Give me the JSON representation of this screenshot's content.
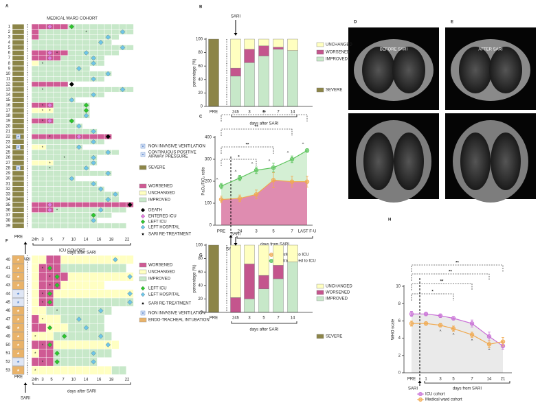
{
  "chart_data": [
    {
      "type": "swimmer",
      "panel": "A",
      "title": "MEDICAL WARD COHORT",
      "rows": [
        {
          "label": "1",
          "pre": "S",
          "cells": "WWWWWGGGGGGGGG",
          "events": "..m..g........"
        },
        {
          "label": "2",
          "pre": "S",
          "cells": "WGGGGGGGGGGGGG",
          "events": ".......*....b."
        },
        {
          "label": "3",
          "pre": "S",
          "cells": "WGGGGGGGGGGG..",
          "events": "..........b..."
        },
        {
          "label": "4",
          "pre": "S",
          "cells": "GGGGGGGGGGG...",
          "events": ".........b...."
        },
        {
          "label": "5",
          "pre": "S",
          "cells": "GGGGGGGGGGGGGG",
          "events": "............b."
        },
        {
          "label": "6",
          "pre": "S",
          "cells": "WWWWWGGGGGGG..",
          "events": "..m*...b......"
        },
        {
          "label": "7",
          "pre": "S",
          "cells": "WWWWGGGGGG....",
          "events": "..m.....b....."
        },
        {
          "label": "8",
          "pre": "S",
          "cells": "YGGGGGGGGG....",
          "events": ".*......b....."
        },
        {
          "label": "9",
          "pre": "S",
          "cells": "GGGGGGGG......",
          "events": "......b......."
        },
        {
          "label": "10",
          "pre": "S",
          "cells": "GGGGGGGGGGG...",
          "events": "..........b..."
        },
        {
          "label": "11",
          "pre": "S",
          "cells": "GGGGGGGGGG....",
          "events": "........b....."
        },
        {
          "label": "12",
          "pre": "S",
          "cells": "WWWWW.........",
          "events": ".....k........"
        },
        {
          "label": "13",
          "pre": "S",
          "cells": "GGGGGGGGGGGGGG",
          "events": ".*..........b."
        },
        {
          "label": "14",
          "pre": "S",
          "cells": "GGGGGGGGGG....",
          "events": "........b....."
        },
        {
          "label": "15",
          "pre": "S",
          "cells": "GGGGGG........",
          "events": ".....b........"
        },
        {
          "label": "16",
          "pre": "S",
          "cells": "WWWGGGGG......",
          "events": ".*m....g......"
        },
        {
          "label": "17",
          "pre": "S",
          "cells": "YYYGGGGG......",
          "events": ".**....g......"
        },
        {
          "label": "18",
          "pre": "S",
          "cells": "GGGGGGGG......",
          "events": ".......b......"
        },
        {
          "label": "19",
          "pre": "S",
          "cells": "WWWGGG........",
          "events": ".*m..g........"
        },
        {
          "label": "20",
          "pre": "S",
          "cells": "GGGGGGG.......",
          "events": "......b......."
        },
        {
          "label": "21",
          "pre": "S",
          "cells": "GGGGGGGGG.....",
          "events": "........b....."
        },
        {
          "label": "22",
          "pre": "S",
          "support": "n",
          "cells": "WWWWWWWWWWW...",
          "events": "..*...m...k..."
        },
        {
          "label": "23",
          "pre": "S",
          "cells": "GGGGGGGGGG....",
          "events": "........b....."
        },
        {
          "label": "24",
          "pre": "S",
          "support": "n",
          "cells": "YYGGGGG.......",
          "events": ".*....b......."
        },
        {
          "label": "25",
          "pre": "S",
          "cells": "GGGGGGGGGGGG..",
          "events": "..........b..."
        },
        {
          "label": "26",
          "pre": "S",
          "cells": "GGGGGGGGG.....",
          "events": "....*...b....."
        },
        {
          "label": "27",
          "pre": "S",
          "cells": "YYYGGGGGG.....",
          "events": "..*.....b....."
        },
        {
          "label": "28",
          "pre": "S",
          "support": "n",
          "cells": "GGGGGGGG......",
          "events": "..*....b......"
        },
        {
          "label": "29",
          "pre": "S",
          "cells": "GGGGGGGGGGG...",
          "events": "..........b..."
        },
        {
          "label": "30",
          "pre": "S",
          "cells": "GGGGGG........",
          "events": ".....b........"
        },
        {
          "label": "31",
          "pre": "S",
          "cells": "GGGGGGGGG.....",
          "events": "........b....."
        },
        {
          "label": "32",
          "pre": "S",
          "cells": "GGGGGGGGGG....",
          "events": ".........b...."
        },
        {
          "label": "33",
          "pre": "S",
          "cells": "GGGGGGGGGGGG..",
          "events": "...........b.."
        },
        {
          "label": "34",
          "pre": "S",
          "cells": "GGGGGGGGGGGG..",
          "events": "..........b..."
        },
        {
          "label": "35",
          "pre": "S",
          "cells": "WWWWWWWWWWWWWW",
          "events": "..m..........k"
        },
        {
          "label": "36",
          "pre": "S",
          "cells": "WWWGGGGGGGGGG.",
          "events": "..m*.....b...."
        },
        {
          "label": "37",
          "pre": "S",
          "cells": "GGGGGGGGGGG...",
          "events": "........g....."
        },
        {
          "label": "38",
          "pre": "S",
          "cells": "GGGGGGGGG.....",
          "events": "........b....."
        },
        {
          "label": "39",
          "pre": "S",
          "cells": "GGGGGGGGGGGGG.",
          "events": ".............."
        }
      ],
      "pre_label": "PRE",
      "x_labels": [
        "24h",
        "3",
        "5",
        "7",
        "10",
        "14",
        "16",
        "18",
        "22"
      ],
      "x_label": "days after SARI",
      "annotation": "SARI",
      "legend": [
        {
          "code": "n",
          "label": "NON INVASIVE VENTILATION"
        },
        {
          "code": "c",
          "label": [
            "CONTINUOUS POSITIVE",
            "AIRWAY PRESSURE"
          ]
        },
        {
          "code": "S",
          "label": "SEVERE"
        },
        {
          "code": "W",
          "label": "WORSENED"
        },
        {
          "code": "Y",
          "label": "UNCHANGED"
        },
        {
          "code": "G",
          "label": "IMPROVED"
        },
        {
          "code": "k",
          "label": "DEATH"
        },
        {
          "code": "m",
          "label": "ENTERED ICU"
        },
        {
          "code": "g",
          "label": "LEFT ICU"
        },
        {
          "code": "b",
          "label": "LEFT HOSPITAL"
        },
        {
          "code": "*",
          "label": "SARI RE-TREATMENT"
        }
      ]
    },
    {
      "type": "stacked_bar",
      "panel": "B",
      "categories": [
        "PRE",
        "24h",
        "3",
        "5",
        "7",
        "14"
      ],
      "series": [
        {
          "name": "IMPROVED",
          "color": "#c7e8c9",
          "values": [
            null,
            45,
            65,
            75,
            85,
            83
          ]
        },
        {
          "name": "WORSENED",
          "color": "#c4558d",
          "values": [
            null,
            12,
            20,
            15,
            3,
            0
          ]
        },
        {
          "name": "UNCHANGED",
          "color": "#ffffc0",
          "values": [
            null,
            43,
            15,
            10,
            12,
            17
          ]
        },
        {
          "name": "SEVERE",
          "color": "#8c8548",
          "values": [
            100,
            null,
            null,
            null,
            null,
            null
          ]
        }
      ],
      "ylabel": "percentage (%)",
      "x_label": "days after SARI",
      "annotation": "SARI",
      "ylim": [
        0,
        100
      ],
      "yticks": [
        0,
        20,
        40,
        60,
        80,
        100
      ]
    },
    {
      "type": "line",
      "panel": "C",
      "categories": [
        "PRE",
        "24",
        "3",
        "5",
        "7",
        "LAST F-U"
      ],
      "series": [
        {
          "name": "transferred to ICU",
          "color": "#f0a94f",
          "area_color": "#e07aa9",
          "values": [
            117,
            122,
            140,
            205,
            198,
            198
          ],
          "errors": [
            15,
            15,
            20,
            35,
            25,
            25
          ]
        },
        {
          "name": "not transferred to ICU",
          "color": "#5cc45c",
          "area_color": "#cdeccd",
          "values": [
            178,
            215,
            250,
            262,
            300,
            340
          ],
          "errors": [
            12,
            12,
            15,
            20,
            15,
            8
          ],
          "marks": [
            "^",
            "^",
            "^",
            "^",
            "^",
            "^"
          ]
        }
      ],
      "significance": [
        "*",
        "**",
        "**",
        "**"
      ],
      "ylabel": "PaO₂/FiO₂ ratio",
      "x_label": "days from SARI",
      "annotation": "SARI",
      "ylim": [
        0,
        400
      ],
      "yticks": [
        0,
        100,
        200,
        300,
        400
      ]
    },
    {
      "type": "swimmer",
      "panel": "F",
      "title": "ICU COHORT",
      "rows": [
        {
          "label": "40",
          "pre": "o",
          "cells": "YYWWYYYYYYYYYY",
          "events": "...........b.."
        },
        {
          "label": "41",
          "pre": "o",
          "cells": "YWWWGGGGGGGGG.",
          "events": ".*g..........."
        },
        {
          "label": "42",
          "pre": "o",
          "cells": "YWWWWYYYYYYYYY",
          "events": "..*g.........b"
        },
        {
          "label": "43",
          "pre": "o",
          "cells": "YWWWYYYYYY....",
          "events": "..*g.........."
        },
        {
          "label": "44",
          "pre": "n",
          "cells": "YWWYYYYYYYYYYY",
          "events": ".*g..........b"
        },
        {
          "label": "45",
          "pre": "n",
          "cells": "YWWGGGGGGGGGGG",
          "events": ".*g..........b"
        },
        {
          "label": "46",
          "pre": "o",
          "cells": "YYGGGGGGGGG...",
          "events": "...*.....b...."
        },
        {
          "label": "47",
          "pre": "o",
          "cells": "WYYYGGGGGG....",
          "events": ".*....b......."
        },
        {
          "label": "48",
          "pre": "o",
          "cells": "WWYYYGGGGG....",
          "events": "..g....b......"
        },
        {
          "label": "49",
          "pre": "o",
          "cells": "YYYGGGGGGGG...",
          "events": "*...g....b...."
        },
        {
          "label": "50",
          "pre": "o",
          "cells": "WWWYYYYYYYYY..",
          "events": ".*g.......b..."
        },
        {
          "label": "51",
          "pre": "o",
          "cells": "YWWGGGGGGGG...",
          "events": "*..g....b....."
        },
        {
          "label": "52",
          "pre": "n",
          "cells": "WWWGGGGGG.....",
          "events": ".*.g....b....."
        },
        {
          "label": "53",
          "pre": "o",
          "cells": "YYYYYYYYYYYGG.",
          "events": "*............."
        }
      ],
      "pre_label": "PRE",
      "x_labels": [
        "24h",
        "3",
        "5",
        "7",
        "10",
        "14",
        "16",
        "18",
        "22"
      ],
      "x_label": "days after SARI",
      "annotation": "SARI",
      "legend": [
        {
          "code": "W",
          "label": "WORSENED"
        },
        {
          "code": "Y",
          "label": "UNCHANGED"
        },
        {
          "code": "G",
          "label": "IMPROVED"
        },
        {
          "code": "g",
          "label": "LEFT ICU"
        },
        {
          "code": "b",
          "label": "LEFT HOSPITAL"
        },
        {
          "code": "*",
          "label": "SARI RE-TREATMENT"
        },
        {
          "code": "n",
          "label": "NON INVASIVE VENTILATION"
        },
        {
          "code": "o",
          "label": "ENDO-TRACHEAL INTUBATION"
        }
      ]
    },
    {
      "type": "stacked_bar",
      "panel": "G",
      "categories": [
        "PRE",
        "24h",
        "3",
        "5",
        "7",
        "14"
      ],
      "series": [
        {
          "name": "IMPROVED",
          "color": "#c7e8c9",
          "values": [
            null,
            0,
            20,
            35,
            50,
            75
          ]
        },
        {
          "name": "WORSENED",
          "color": "#c4558d",
          "values": [
            null,
            22,
            52,
            20,
            20,
            0
          ]
        },
        {
          "name": "UNCHANGED",
          "color": "#ffffc0",
          "values": [
            null,
            78,
            28,
            45,
            30,
            25
          ]
        },
        {
          "name": "SEVERE",
          "color": "#8c8548",
          "values": [
            100,
            null,
            null,
            null,
            null,
            null
          ]
        }
      ],
      "ylabel": "percentage (%)",
      "x_label": "days after SARI",
      "annotation": "SARI",
      "ylim": [
        0,
        100
      ],
      "yticks": [
        0,
        20,
        40,
        60,
        80,
        100
      ]
    },
    {
      "type": "line",
      "panel": "H",
      "categories": [
        "PRE",
        "1",
        "3",
        "5",
        "7",
        "14",
        "21"
      ],
      "series": [
        {
          "name": "ICU cohort",
          "color": "#c86fd6",
          "area_color": "#e6e6e6",
          "values": [
            6.8,
            6.8,
            6.6,
            6.3,
            5.7,
            4.2,
            3.1
          ],
          "errors": [
            0.3,
            0.2,
            0.2,
            0.2,
            0.4,
            0.5,
            0.4
          ]
        },
        {
          "name": "Medical ward cohort",
          "color": "#f0a94f",
          "values": [
            5.7,
            5.7,
            5.5,
            5.1,
            4.4,
            3.3,
            3.6
          ],
          "errors": [
            0.3,
            0.2,
            0.2,
            0.3,
            0.3,
            0.4,
            0.5
          ],
          "marks": [
            null,
            null,
            "^",
            "^",
            "^",
            "^",
            null
          ]
        }
      ],
      "significance": [
        "*",
        "**",
        "**",
        "**"
      ],
      "ylabel": "WHO scale",
      "x_label": "days from SARI",
      "annotation": "SARI",
      "ylim": [
        0,
        10
      ],
      "yticks": [
        0,
        2,
        4,
        6,
        8,
        10
      ]
    }
  ],
  "images": [
    {
      "panel": "D",
      "label": "BEFORE SARI"
    },
    {
      "panel": "E",
      "label": "AFTER SARI"
    }
  ]
}
